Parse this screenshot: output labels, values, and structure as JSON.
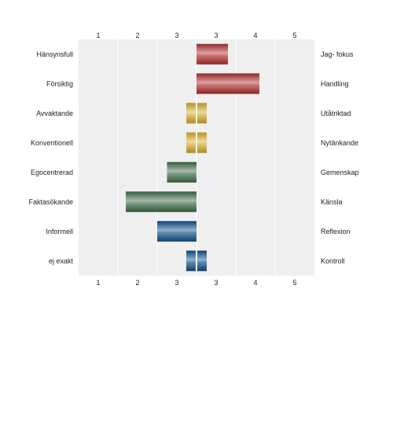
{
  "chart_data": {
    "type": "bar",
    "title": "",
    "xlabel": "",
    "ylabel": "",
    "x_ticks": [
      "1",
      "2",
      "3",
      "3",
      "4",
      "5"
    ],
    "center": 3.5,
    "rows": [
      {
        "left_label": "Hänsynsfull",
        "right_label": "Jag- fokus",
        "value": 4.3,
        "color": "#b02e2e"
      },
      {
        "left_label": "Försiktig",
        "right_label": "Handling",
        "value": 5.1,
        "color": "#b02e2e"
      },
      {
        "left_label": "Avvaktande",
        "right_label": "Utåtriktad",
        "value": 3.5,
        "color": "#d8ac2a"
      },
      {
        "left_label": "Konventionell",
        "right_label": "Nytänkande",
        "value": 3.5,
        "color": "#d8ac2a"
      },
      {
        "left_label": "Egocentrerad",
        "right_label": "Gemenskap",
        "value": 2.75,
        "color": "#3d6b48"
      },
      {
        "left_label": "Faktasökande",
        "right_label": "Känsla",
        "value": 1.7,
        "color": "#3d6b48"
      },
      {
        "left_label": "Informell",
        "right_label": "Reflexion",
        "value": 2.5,
        "color": "#0f4f8a"
      },
      {
        "left_label": "ej exakt",
        "right_label": "Kontroll",
        "value": 3.5,
        "color": "#0f4f8a"
      }
    ],
    "grid": true,
    "legend": "none"
  }
}
